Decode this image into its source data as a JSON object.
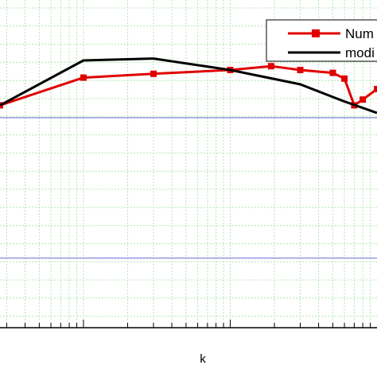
{
  "chart_data": {
    "type": "line",
    "xlabel": "k",
    "ylabel": "",
    "x_scale": "log",
    "grid": true,
    "legend_position": "top-right",
    "series": [
      {
        "name": "Num",
        "color": "#e00000",
        "marker": "square",
        "x": [
          0.27,
          1,
          3,
          10,
          19,
          30,
          50,
          60,
          70,
          80,
          100
        ],
        "y": [
          0.83,
          1.12,
          1.16,
          1.2,
          1.24,
          1.2,
          1.17,
          1.11,
          0.83,
          0.89,
          1.0
        ]
      },
      {
        "name": "modi",
        "color": "#000000",
        "marker": "none",
        "x": [
          0.27,
          1,
          3,
          10,
          30,
          60,
          100
        ],
        "y": [
          0.83,
          1.3,
          1.32,
          1.2,
          1.05,
          0.87,
          0.75
        ]
      }
    ],
    "hlines": [
      {
        "y": 0.7,
        "color": "#6b6bd6"
      },
      {
        "y": -0.77,
        "color": "#6b6bd6"
      }
    ]
  }
}
